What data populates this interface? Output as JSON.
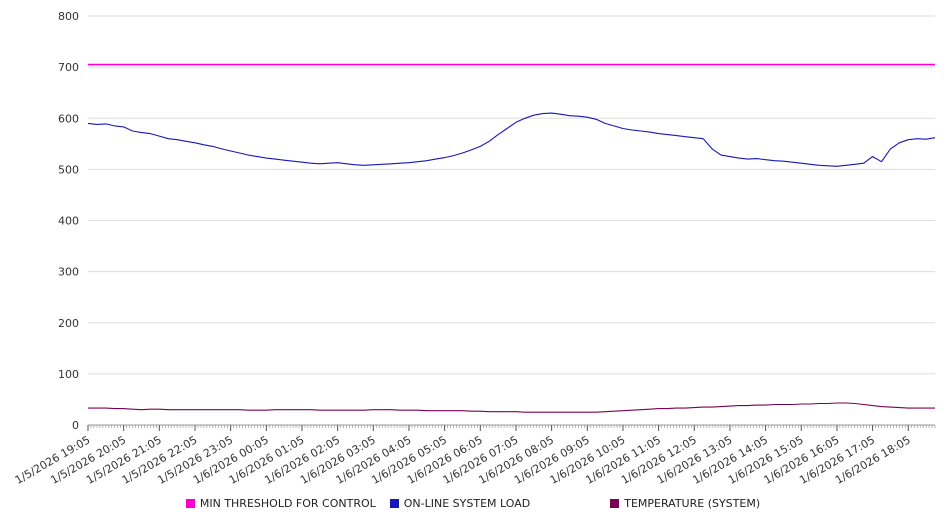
{
  "chart_data": {
    "type": "line",
    "title": "",
    "xlabel": "",
    "ylabel": "",
    "ylim": [
      0,
      800
    ],
    "yticks": [
      0,
      100,
      200,
      300,
      400,
      500,
      600,
      700,
      800
    ],
    "grid": "horizontal",
    "legend_position": "bottom",
    "x_labels": [
      "1/5/2026 19:05",
      "1/5/2026 20:05",
      "1/5/2026 21:05",
      "1/5/2026 22:05",
      "1/5/2026 23:05",
      "1/6/2026 00:05",
      "1/6/2026 01:05",
      "1/6/2026 02:05",
      "1/6/2026 03:05",
      "1/6/2026 04:05",
      "1/6/2026 05:05",
      "1/6/2026 06:05",
      "1/6/2026 07:05",
      "1/6/2026 08:05",
      "1/6/2026 09:05",
      "1/6/2026 10:05",
      "1/6/2026 11:05",
      "1/6/2026 12:05",
      "1/6/2026 13:05",
      "1/6/2026 14:05",
      "1/6/2026 15:05",
      "1/6/2026 16:05",
      "1/6/2026 17:05",
      "1/6/2026 18:05"
    ],
    "points_per_label": 4,
    "series": [
      {
        "name": "MIN THRESHOLD FOR CONTROL",
        "color": "#ff00cc",
        "constant": 705
      },
      {
        "name": "ON-LINE SYSTEM LOAD",
        "color": "#1717b8",
        "values": [
          590,
          588,
          589,
          585,
          583,
          575,
          572,
          570,
          565,
          560,
          558,
          555,
          552,
          548,
          545,
          540,
          536,
          532,
          528,
          525,
          522,
          520,
          518,
          516,
          514,
          512,
          511,
          512,
          513,
          511,
          509,
          508,
          509,
          510,
          511,
          512,
          513,
          515,
          517,
          520,
          523,
          527,
          532,
          538,
          545,
          555,
          568,
          580,
          592,
          600,
          606,
          609,
          610,
          608,
          605,
          604,
          602,
          598,
          590,
          585,
          580,
          577,
          575,
          573,
          570,
          568,
          566,
          564,
          562,
          560,
          540,
          528,
          525,
          522,
          520,
          521,
          519,
          517,
          516,
          514,
          512,
          510,
          508,
          507,
          506,
          508,
          510,
          512,
          525,
          515,
          540,
          552,
          558,
          560,
          559,
          562
        ]
      },
      {
        "name": "TEMPERATURE (SYSTEM)",
        "color": "#7a0253",
        "values": [
          33,
          33,
          33,
          32,
          32,
          31,
          30,
          31,
          31,
          30,
          30,
          30,
          30,
          30,
          30,
          30,
          30,
          30,
          29,
          29,
          29,
          30,
          30,
          30,
          30,
          30,
          29,
          29,
          29,
          29,
          29,
          29,
          30,
          30,
          30,
          29,
          29,
          29,
          28,
          28,
          28,
          28,
          28,
          27,
          27,
          26,
          26,
          26,
          26,
          25,
          25,
          25,
          25,
          25,
          25,
          25,
          25,
          25,
          26,
          27,
          28,
          29,
          30,
          31,
          32,
          32,
          33,
          33,
          34,
          35,
          35,
          36,
          37,
          38,
          38,
          39,
          39,
          40,
          40,
          40,
          41,
          41,
          42,
          42,
          43,
          43,
          42,
          40,
          38,
          36,
          35,
          34,
          33,
          33,
          33,
          33
        ]
      }
    ]
  },
  "legend": {
    "items": [
      {
        "label": "MIN THRESHOLD FOR CONTROL"
      },
      {
        "label": "ON-LINE SYSTEM LOAD"
      },
      {
        "label": "TEMPERATURE (SYSTEM)"
      }
    ]
  }
}
